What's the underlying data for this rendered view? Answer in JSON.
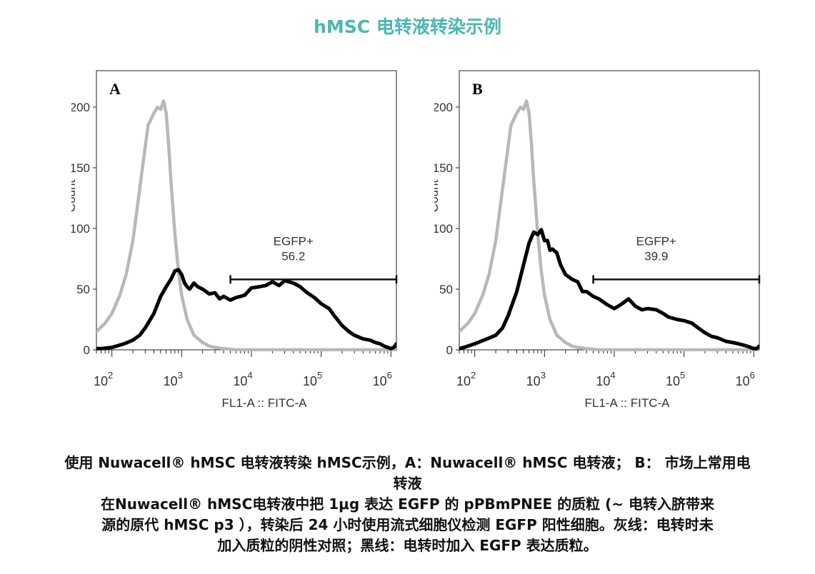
{
  "header": {
    "title": "hMSC 电转液转染示例"
  },
  "colors": {
    "title": "#4ab7b1",
    "control_line": "#b8b8b8",
    "egfp_line": "#000000"
  },
  "caption": {
    "line1": "使用 Nuwacell® hMSC 电转液转染 hMSC示例，A：Nuwacell® hMSC 电转液； B： 市场上常用电",
    "line2": "转液",
    "line3": "在Nuwacell® hMSC电转液中把 1μg 表达 EGFP 的 pPBmPNEE 的质粒 (~ 电转入脐带来",
    "line4": "源的原代 hMSC p3 ），转染后 24 小时使用流式细胞仪检测 EGFP 阳性细胞。灰线：电转时未",
    "line5": "加入质粒的阴性对照；黑线：电转时加入 EGFP 表达质粒。"
  },
  "chart_data": [
    {
      "type": "line",
      "panel_label": "A",
      "xlabel": "FL1-A :: FITC-A",
      "ylabel": "Count",
      "x_scale": "log",
      "xlim": [
        60,
        1200000
      ],
      "ylim": [
        0,
        230
      ],
      "x_ticks": [
        100,
        1000,
        10000,
        100000,
        1000000
      ],
      "x_tick_labels": [
        {
          "base": "10",
          "exp": "2"
        },
        {
          "base": "10",
          "exp": "3"
        },
        {
          "base": "10",
          "exp": "4"
        },
        {
          "base": "10",
          "exp": "5"
        },
        {
          "base": "10",
          "exp": "6"
        }
      ],
      "y_ticks": [
        0,
        50,
        100,
        150,
        200
      ],
      "y_tick_labels": [
        "0",
        "50",
        "100",
        "150",
        "200"
      ],
      "gate": {
        "label": "EGFP+",
        "value": "56.2",
        "x_start": 5000,
        "x_end": 1200000,
        "y": 58
      },
      "series": [
        {
          "role": "control",
          "x": [
            60,
            80,
            100,
            130,
            160,
            200,
            260,
            330,
            400,
            450,
            500,
            550,
            600,
            650,
            700,
            800,
            900,
            1000,
            1200,
            1500,
            2000,
            2500,
            3000,
            4000,
            6000,
            10000,
            100000,
            1200000
          ],
          "y": [
            15,
            22,
            30,
            45,
            62,
            90,
            140,
            185,
            195,
            200,
            198,
            205,
            195,
            170,
            140,
            95,
            65,
            45,
            25,
            12,
            6,
            3,
            2,
            1,
            0,
            0,
            0,
            0
          ]
        },
        {
          "role": "egfp",
          "x": [
            60,
            70,
            100,
            150,
            200,
            250,
            300,
            400,
            500,
            600,
            700,
            800,
            900,
            1000,
            1100,
            1200,
            1300,
            1500,
            1700,
            2000,
            2500,
            3000,
            3500,
            4000,
            5000,
            6000,
            8000,
            10000,
            13000,
            16000,
            20000,
            25000,
            30000,
            40000,
            50000,
            60000,
            80000,
            100000,
            130000,
            160000,
            200000,
            250000,
            300000,
            400000,
            500000,
            600000,
            700000,
            800000,
            900000,
            1000000,
            1100000,
            1200000
          ],
          "y": [
            1,
            1,
            2,
            5,
            8,
            12,
            18,
            30,
            44,
            52,
            58,
            65,
            66,
            62,
            55,
            52,
            50,
            55,
            52,
            50,
            46,
            47,
            42,
            44,
            41,
            43,
            45,
            51,
            52,
            53,
            56,
            53,
            57,
            55,
            52,
            48,
            43,
            38,
            34,
            27,
            20,
            15,
            12,
            9,
            8,
            6,
            5,
            3,
            2,
            1,
            2,
            5
          ]
        }
      ]
    },
    {
      "type": "line",
      "panel_label": "B",
      "xlabel": "FL1-A :: FITC-A",
      "ylabel": "Count",
      "x_scale": "log",
      "xlim": [
        60,
        1200000
      ],
      "ylim": [
        0,
        230
      ],
      "x_ticks": [
        100,
        1000,
        10000,
        100000,
        1000000
      ],
      "x_tick_labels": [
        {
          "base": "10",
          "exp": "2"
        },
        {
          "base": "10",
          "exp": "3"
        },
        {
          "base": "10",
          "exp": "4"
        },
        {
          "base": "10",
          "exp": "5"
        },
        {
          "base": "10",
          "exp": "6"
        }
      ],
      "y_ticks": [
        0,
        50,
        100,
        150,
        200
      ],
      "y_tick_labels": [
        "0",
        "50",
        "100",
        "150",
        "200"
      ],
      "gate": {
        "label": "EGFP+",
        "value": "39.9",
        "x_start": 5000,
        "x_end": 1200000,
        "y": 58
      },
      "series": [
        {
          "role": "control",
          "x": [
            60,
            80,
            100,
            130,
            160,
            200,
            260,
            330,
            400,
            450,
            500,
            550,
            600,
            650,
            700,
            800,
            900,
            1000,
            1200,
            1500,
            2000,
            2500,
            3000,
            4000,
            6000,
            10000,
            100000,
            1200000
          ],
          "y": [
            15,
            22,
            30,
            45,
            62,
            90,
            140,
            185,
            195,
            200,
            198,
            205,
            195,
            170,
            140,
            95,
            65,
            45,
            25,
            12,
            6,
            3,
            2,
            1,
            0,
            0,
            0,
            0
          ]
        },
        {
          "role": "egfp",
          "x": [
            60,
            70,
            100,
            150,
            200,
            250,
            300,
            400,
            500,
            600,
            700,
            800,
            900,
            1000,
            1100,
            1200,
            1300,
            1500,
            1700,
            2000,
            2500,
            3000,
            3500,
            4000,
            5000,
            6000,
            8000,
            10000,
            13000,
            16000,
            20000,
            25000,
            30000,
            40000,
            50000,
            60000,
            80000,
            100000,
            130000,
            160000,
            200000,
            250000,
            300000,
            400000,
            500000,
            600000,
            700000,
            800000,
            900000,
            1000000,
            1100000,
            1200000
          ],
          "y": [
            1,
            2,
            5,
            9,
            12,
            18,
            28,
            48,
            70,
            88,
            97,
            95,
            99,
            90,
            90,
            82,
            83,
            80,
            70,
            62,
            58,
            56,
            48,
            48,
            44,
            42,
            37,
            34,
            38,
            42,
            36,
            33,
            34,
            33,
            30,
            27,
            25,
            24,
            22,
            18,
            14,
            11,
            10,
            7,
            6,
            5,
            4,
            3,
            2,
            1,
            1,
            3
          ]
        }
      ]
    }
  ]
}
